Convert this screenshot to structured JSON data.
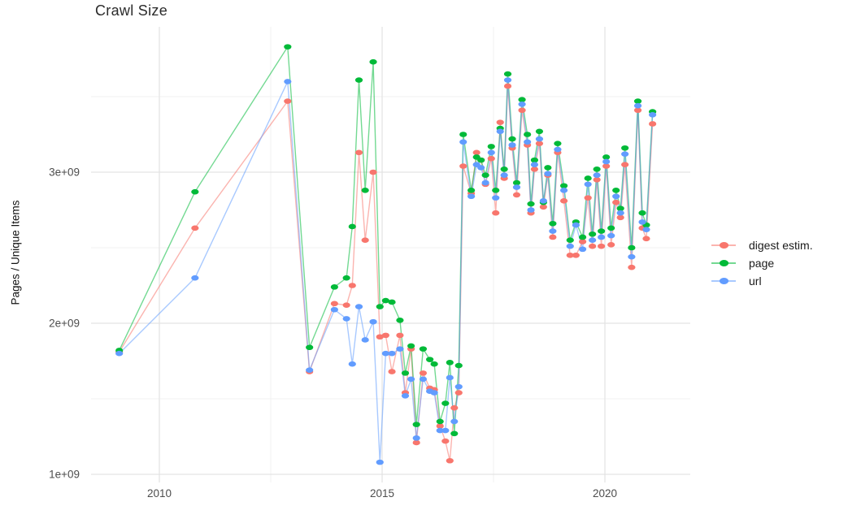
{
  "title": "Crawl Size",
  "chart_data": {
    "type": "line",
    "title": "Crawl Size",
    "ylabel": "Pages / Unique Items",
    "xlabel": "",
    "values_unit": "count x 1e9 (billions)",
    "x_unit": "year (decimal)",
    "legend_position": "right",
    "grid": true,
    "xlim": [
      2008.6,
      2022.0
    ],
    "ylim": [
      920000000.0,
      3990000000.0
    ],
    "x_axis": {
      "ticks": [
        {
          "v": 2010,
          "label": "2010"
        },
        {
          "v": 2015,
          "label": "2015"
        },
        {
          "v": 2020,
          "label": "2020"
        }
      ],
      "minor": [
        2012.5,
        2017.5
      ]
    },
    "y_axis": {
      "ticks": [
        {
          "v": 1.0,
          "label": "1e+09"
        },
        {
          "v": 2.0,
          "label": "2e+09"
        },
        {
          "v": 3.0,
          "label": "3e+09"
        }
      ],
      "minor": [
        1.5,
        2.5,
        3.5
      ]
    },
    "x": [
      2009.1,
      2010.8,
      2012.88,
      2013.37,
      2013.93,
      2014.2,
      2014.33,
      2014.48,
      2014.62,
      2014.8,
      2014.95,
      2015.08,
      2015.22,
      2015.4,
      2015.52,
      2015.65,
      2015.77,
      2015.92,
      2016.07,
      2016.17,
      2016.3,
      2016.42,
      2016.52,
      2016.62,
      2016.72,
      2016.82,
      2017.0,
      2017.12,
      2017.22,
      2017.32,
      2017.45,
      2017.55,
      2017.65,
      2017.74,
      2017.82,
      2017.92,
      2018.02,
      2018.14,
      2018.26,
      2018.34,
      2018.42,
      2018.53,
      2018.62,
      2018.72,
      2018.83,
      2018.94,
      2019.08,
      2019.22,
      2019.35,
      2019.5,
      2019.62,
      2019.72,
      2019.82,
      2019.92,
      2020.03,
      2020.14,
      2020.25,
      2020.35,
      2020.45,
      2020.6,
      2020.74,
      2020.84,
      2020.93,
      2021.07
    ],
    "series": [
      {
        "name": "digest estim.",
        "color": "#F8766D",
        "values": [
          1.81,
          2.63,
          3.47,
          1.68,
          2.13,
          2.12,
          2.25,
          3.13,
          2.55,
          3.0,
          1.91,
          1.92,
          1.68,
          1.92,
          1.54,
          1.83,
          1.21,
          1.67,
          1.57,
          1.56,
          1.32,
          1.22,
          1.09,
          1.44,
          1.54,
          3.04,
          2.86,
          3.13,
          3.08,
          2.92,
          3.09,
          2.73,
          3.33,
          2.96,
          3.57,
          3.16,
          2.85,
          3.41,
          3.18,
          2.73,
          3.02,
          3.19,
          2.77,
          2.98,
          2.57,
          3.13,
          2.81,
          2.45,
          2.45,
          2.54,
          2.83,
          2.51,
          2.95,
          2.51,
          3.04,
          2.52,
          2.8,
          2.7,
          3.05,
          2.37,
          3.41,
          2.63,
          2.56,
          3.32
        ]
      },
      {
        "name": "page",
        "color": "#00BA38",
        "values": [
          1.82,
          2.87,
          3.83,
          1.84,
          2.24,
          2.3,
          2.64,
          3.61,
          2.88,
          3.73,
          2.11,
          2.15,
          2.14,
          2.02,
          1.67,
          1.85,
          1.33,
          1.83,
          1.76,
          1.73,
          1.35,
          1.47,
          1.74,
          1.27,
          1.72,
          3.25,
          2.88,
          3.1,
          3.08,
          2.98,
          3.17,
          2.88,
          3.29,
          3.02,
          3.65,
          3.22,
          2.93,
          3.48,
          3.25,
          2.79,
          3.08,
          3.27,
          2.8,
          3.03,
          2.66,
          3.19,
          2.91,
          2.55,
          2.67,
          2.57,
          2.96,
          2.59,
          3.02,
          2.61,
          3.1,
          2.63,
          2.88,
          2.76,
          3.16,
          2.5,
          3.47,
          2.73,
          2.65,
          3.4
        ]
      },
      {
        "name": "url",
        "color": "#619CFF",
        "values": [
          1.8,
          2.3,
          3.6,
          1.69,
          2.09,
          2.03,
          1.73,
          2.11,
          1.89,
          2.01,
          1.08,
          1.8,
          1.8,
          1.83,
          1.52,
          1.63,
          1.24,
          1.63,
          1.55,
          1.54,
          1.29,
          1.29,
          1.64,
          1.35,
          1.58,
          3.2,
          2.84,
          3.05,
          3.03,
          2.93,
          3.13,
          2.83,
          3.27,
          2.98,
          3.61,
          3.18,
          2.9,
          3.45,
          3.2,
          2.75,
          3.05,
          3.22,
          2.81,
          2.99,
          2.61,
          3.15,
          2.88,
          2.51,
          2.65,
          2.49,
          2.92,
          2.55,
          2.98,
          2.57,
          3.07,
          2.58,
          2.84,
          2.73,
          3.12,
          2.44,
          3.44,
          2.67,
          2.62,
          3.38
        ]
      }
    ]
  },
  "style": {
    "grid_major_color": "#E3E3E3",
    "grid_minor_color": "#F0F0F0",
    "tick_text_color": "#4D4D4D",
    "title_color": "#2B2B2B",
    "background": "#FFFFFF"
  }
}
